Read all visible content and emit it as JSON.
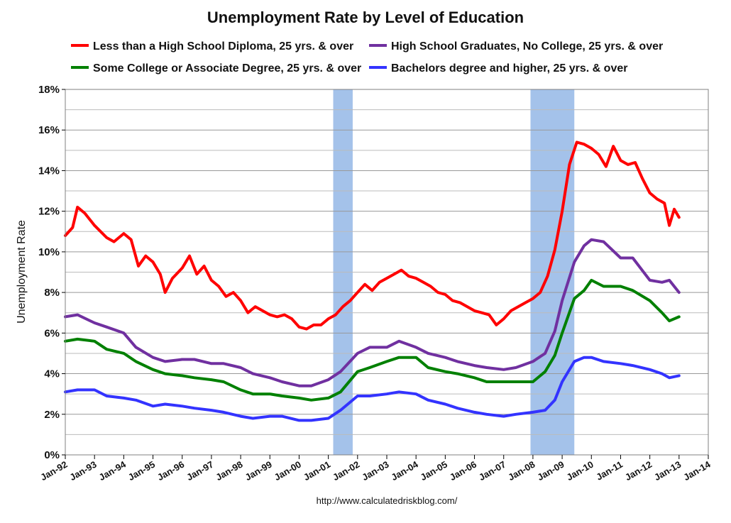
{
  "chart_data": {
    "type": "line",
    "title": "Unemployment Rate by Level of Education",
    "ylabel": "Unemployment Rate",
    "xlabel": "",
    "source": "http://www.calculatedriskblog.com/",
    "ylim": [
      0,
      18
    ],
    "xlim": [
      "1992-01",
      "2014-01"
    ],
    "y_ticks": [
      0,
      2,
      4,
      6,
      8,
      10,
      12,
      14,
      16,
      18
    ],
    "y_tick_labels": [
      "0%",
      "2%",
      "4%",
      "6%",
      "8%",
      "10%",
      "12%",
      "14%",
      "16%",
      "18%"
    ],
    "x_ticks": [
      "1992-01",
      "1993-01",
      "1994-01",
      "1995-01",
      "1996-01",
      "1997-01",
      "1998-01",
      "1999-01",
      "2000-01",
      "2001-01",
      "2002-01",
      "2003-01",
      "2004-01",
      "2005-01",
      "2006-01",
      "2007-01",
      "2008-01",
      "2009-01",
      "2010-01",
      "2011-01",
      "2012-01",
      "2013-01",
      "2014-01"
    ],
    "x_tick_labels": [
      "Jan-92",
      "Jan-93",
      "Jan-94",
      "Jan-95",
      "Jan-96",
      "Jan-97",
      "Jan-98",
      "Jan-99",
      "Jan-00",
      "Jan-01",
      "Jan-02",
      "Jan-03",
      "Jan-04",
      "Jan-05",
      "Jan-06",
      "Jan-07",
      "Jan-08",
      "Jan-09",
      "Jan-10",
      "Jan-11",
      "Jan-12",
      "Jan-13",
      "Jan-14"
    ],
    "grid": true,
    "legend_position": "top",
    "recessions": [
      {
        "start": "2001-03",
        "end": "2001-11"
      },
      {
        "start": "2007-12",
        "end": "2009-06"
      }
    ],
    "colors": {
      "recession": "#a4c2ea",
      "grid": "#999999",
      "axis": "#000000"
    },
    "series": [
      {
        "name": "Less than a High School Diploma, 25 yrs. & over",
        "color": "#ff0000",
        "points": [
          [
            "1992-01",
            10.8
          ],
          [
            "1992-04",
            11.2
          ],
          [
            "1992-06",
            12.2
          ],
          [
            "1992-09",
            11.9
          ],
          [
            "1993-01",
            11.3
          ],
          [
            "1993-06",
            10.7
          ],
          [
            "1993-09",
            10.5
          ],
          [
            "1994-01",
            10.9
          ],
          [
            "1994-04",
            10.6
          ],
          [
            "1994-07",
            9.3
          ],
          [
            "1994-10",
            9.8
          ],
          [
            "1995-01",
            9.5
          ],
          [
            "1995-04",
            8.9
          ],
          [
            "1995-06",
            8.0
          ],
          [
            "1995-09",
            8.7
          ],
          [
            "1996-01",
            9.2
          ],
          [
            "1996-04",
            9.8
          ],
          [
            "1996-07",
            8.9
          ],
          [
            "1996-10",
            9.3
          ],
          [
            "1997-01",
            8.6
          ],
          [
            "1997-04",
            8.3
          ],
          [
            "1997-07",
            7.8
          ],
          [
            "1997-10",
            8.0
          ],
          [
            "1998-01",
            7.6
          ],
          [
            "1998-04",
            7.0
          ],
          [
            "1998-07",
            7.3
          ],
          [
            "1998-10",
            7.1
          ],
          [
            "1999-01",
            6.9
          ],
          [
            "1999-04",
            6.8
          ],
          [
            "1999-07",
            6.9
          ],
          [
            "1999-10",
            6.7
          ],
          [
            "2000-01",
            6.3
          ],
          [
            "2000-04",
            6.2
          ],
          [
            "2000-07",
            6.4
          ],
          [
            "2000-10",
            6.4
          ],
          [
            "2001-01",
            6.7
          ],
          [
            "2001-04",
            6.9
          ],
          [
            "2001-07",
            7.3
          ],
          [
            "2001-10",
            7.6
          ],
          [
            "2002-01",
            8.0
          ],
          [
            "2002-04",
            8.4
          ],
          [
            "2002-07",
            8.1
          ],
          [
            "2002-10",
            8.5
          ],
          [
            "2003-01",
            8.7
          ],
          [
            "2003-04",
            8.9
          ],
          [
            "2003-07",
            9.1
          ],
          [
            "2003-10",
            8.8
          ],
          [
            "2004-01",
            8.7
          ],
          [
            "2004-04",
            8.5
          ],
          [
            "2004-07",
            8.3
          ],
          [
            "2004-10",
            8.0
          ],
          [
            "2005-01",
            7.9
          ],
          [
            "2005-04",
            7.6
          ],
          [
            "2005-07",
            7.5
          ],
          [
            "2005-10",
            7.3
          ],
          [
            "2006-01",
            7.1
          ],
          [
            "2006-04",
            7.0
          ],
          [
            "2006-07",
            6.9
          ],
          [
            "2006-10",
            6.4
          ],
          [
            "2007-01",
            6.7
          ],
          [
            "2007-04",
            7.1
          ],
          [
            "2007-07",
            7.3
          ],
          [
            "2007-10",
            7.5
          ],
          [
            "2008-01",
            7.7
          ],
          [
            "2008-04",
            8.0
          ],
          [
            "2008-07",
            8.8
          ],
          [
            "2008-10",
            10.1
          ],
          [
            "2009-01",
            12.0
          ],
          [
            "2009-04",
            14.3
          ],
          [
            "2009-07",
            15.4
          ],
          [
            "2009-10",
            15.3
          ],
          [
            "2010-01",
            15.1
          ],
          [
            "2010-04",
            14.8
          ],
          [
            "2010-07",
            14.2
          ],
          [
            "2010-10",
            15.2
          ],
          [
            "2011-01",
            14.5
          ],
          [
            "2011-04",
            14.3
          ],
          [
            "2011-07",
            14.4
          ],
          [
            "2011-10",
            13.6
          ],
          [
            "2012-01",
            12.9
          ],
          [
            "2012-04",
            12.6
          ],
          [
            "2012-07",
            12.4
          ],
          [
            "2012-09",
            11.3
          ],
          [
            "2012-11",
            12.1
          ],
          [
            "2013-01",
            11.7
          ]
        ]
      },
      {
        "name": "High School Graduates, No College, 25 yrs. & over",
        "color": "#7030a0",
        "points": [
          [
            "1992-01",
            6.8
          ],
          [
            "1992-06",
            6.9
          ],
          [
            "1993-01",
            6.5
          ],
          [
            "1993-06",
            6.3
          ],
          [
            "1994-01",
            6.0
          ],
          [
            "1994-06",
            5.3
          ],
          [
            "1995-01",
            4.8
          ],
          [
            "1995-06",
            4.6
          ],
          [
            "1996-01",
            4.7
          ],
          [
            "1996-06",
            4.7
          ],
          [
            "1997-01",
            4.5
          ],
          [
            "1997-06",
            4.5
          ],
          [
            "1998-01",
            4.3
          ],
          [
            "1998-06",
            4.0
          ],
          [
            "1999-01",
            3.8
          ],
          [
            "1999-06",
            3.6
          ],
          [
            "2000-01",
            3.4
          ],
          [
            "2000-06",
            3.4
          ],
          [
            "2001-01",
            3.7
          ],
          [
            "2001-06",
            4.1
          ],
          [
            "2002-01",
            5.0
          ],
          [
            "2002-06",
            5.3
          ],
          [
            "2003-01",
            5.3
          ],
          [
            "2003-06",
            5.6
          ],
          [
            "2004-01",
            5.3
          ],
          [
            "2004-06",
            5.0
          ],
          [
            "2005-01",
            4.8
          ],
          [
            "2005-06",
            4.6
          ],
          [
            "2006-01",
            4.4
          ],
          [
            "2006-06",
            4.3
          ],
          [
            "2007-01",
            4.2
          ],
          [
            "2007-06",
            4.3
          ],
          [
            "2008-01",
            4.6
          ],
          [
            "2008-06",
            5.0
          ],
          [
            "2008-10",
            6.1
          ],
          [
            "2009-01",
            7.6
          ],
          [
            "2009-06",
            9.5
          ],
          [
            "2009-10",
            10.3
          ],
          [
            "2010-01",
            10.6
          ],
          [
            "2010-06",
            10.5
          ],
          [
            "2011-01",
            9.7
          ],
          [
            "2011-06",
            9.7
          ],
          [
            "2012-01",
            8.6
          ],
          [
            "2012-06",
            8.5
          ],
          [
            "2012-09",
            8.6
          ],
          [
            "2013-01",
            8.0
          ]
        ]
      },
      {
        "name": "Some College or Associate Degree, 25 yrs. & over",
        "color": "#008000",
        "points": [
          [
            "1992-01",
            5.6
          ],
          [
            "1992-06",
            5.7
          ],
          [
            "1993-01",
            5.6
          ],
          [
            "1993-06",
            5.2
          ],
          [
            "1994-01",
            5.0
          ],
          [
            "1994-06",
            4.6
          ],
          [
            "1995-01",
            4.2
          ],
          [
            "1995-06",
            4.0
          ],
          [
            "1996-01",
            3.9
          ],
          [
            "1996-06",
            3.8
          ],
          [
            "1997-01",
            3.7
          ],
          [
            "1997-06",
            3.6
          ],
          [
            "1998-01",
            3.2
          ],
          [
            "1998-06",
            3.0
          ],
          [
            "1999-01",
            3.0
          ],
          [
            "1999-06",
            2.9
          ],
          [
            "2000-01",
            2.8
          ],
          [
            "2000-06",
            2.7
          ],
          [
            "2001-01",
            2.8
          ],
          [
            "2001-06",
            3.1
          ],
          [
            "2002-01",
            4.1
          ],
          [
            "2002-06",
            4.3
          ],
          [
            "2003-01",
            4.6
          ],
          [
            "2003-06",
            4.8
          ],
          [
            "2004-01",
            4.8
          ],
          [
            "2004-06",
            4.3
          ],
          [
            "2005-01",
            4.1
          ],
          [
            "2005-06",
            4.0
          ],
          [
            "2006-01",
            3.8
          ],
          [
            "2006-06",
            3.6
          ],
          [
            "2007-01",
            3.6
          ],
          [
            "2007-06",
            3.6
          ],
          [
            "2008-01",
            3.6
          ],
          [
            "2008-06",
            4.1
          ],
          [
            "2008-10",
            4.9
          ],
          [
            "2009-01",
            6.0
          ],
          [
            "2009-06",
            7.7
          ],
          [
            "2009-10",
            8.1
          ],
          [
            "2010-01",
            8.6
          ],
          [
            "2010-06",
            8.3
          ],
          [
            "2011-01",
            8.3
          ],
          [
            "2011-06",
            8.1
          ],
          [
            "2012-01",
            7.6
          ],
          [
            "2012-06",
            7.0
          ],
          [
            "2012-09",
            6.6
          ],
          [
            "2013-01",
            6.8
          ]
        ]
      },
      {
        "name": "Bachelors degree and higher, 25 yrs. & over",
        "color": "#3333ff",
        "points": [
          [
            "1992-01",
            3.1
          ],
          [
            "1992-06",
            3.2
          ],
          [
            "1993-01",
            3.2
          ],
          [
            "1993-06",
            2.9
          ],
          [
            "1994-01",
            2.8
          ],
          [
            "1994-06",
            2.7
          ],
          [
            "1995-01",
            2.4
          ],
          [
            "1995-06",
            2.5
          ],
          [
            "1996-01",
            2.4
          ],
          [
            "1996-06",
            2.3
          ],
          [
            "1997-01",
            2.2
          ],
          [
            "1997-06",
            2.1
          ],
          [
            "1998-01",
            1.9
          ],
          [
            "1998-06",
            1.8
          ],
          [
            "1999-01",
            1.9
          ],
          [
            "1999-06",
            1.9
          ],
          [
            "2000-01",
            1.7
          ],
          [
            "2000-06",
            1.7
          ],
          [
            "2001-01",
            1.8
          ],
          [
            "2001-06",
            2.2
          ],
          [
            "2002-01",
            2.9
          ],
          [
            "2002-06",
            2.9
          ],
          [
            "2003-01",
            3.0
          ],
          [
            "2003-06",
            3.1
          ],
          [
            "2004-01",
            3.0
          ],
          [
            "2004-06",
            2.7
          ],
          [
            "2005-01",
            2.5
          ],
          [
            "2005-06",
            2.3
          ],
          [
            "2006-01",
            2.1
          ],
          [
            "2006-06",
            2.0
          ],
          [
            "2007-01",
            1.9
          ],
          [
            "2007-06",
            2.0
          ],
          [
            "2008-01",
            2.1
          ],
          [
            "2008-06",
            2.2
          ],
          [
            "2008-10",
            2.7
          ],
          [
            "2009-01",
            3.6
          ],
          [
            "2009-06",
            4.6
          ],
          [
            "2009-10",
            4.8
          ],
          [
            "2010-01",
            4.8
          ],
          [
            "2010-06",
            4.6
          ],
          [
            "2011-01",
            4.5
          ],
          [
            "2011-06",
            4.4
          ],
          [
            "2012-01",
            4.2
          ],
          [
            "2012-06",
            4.0
          ],
          [
            "2012-09",
            3.8
          ],
          [
            "2013-01",
            3.9
          ]
        ]
      }
    ]
  }
}
